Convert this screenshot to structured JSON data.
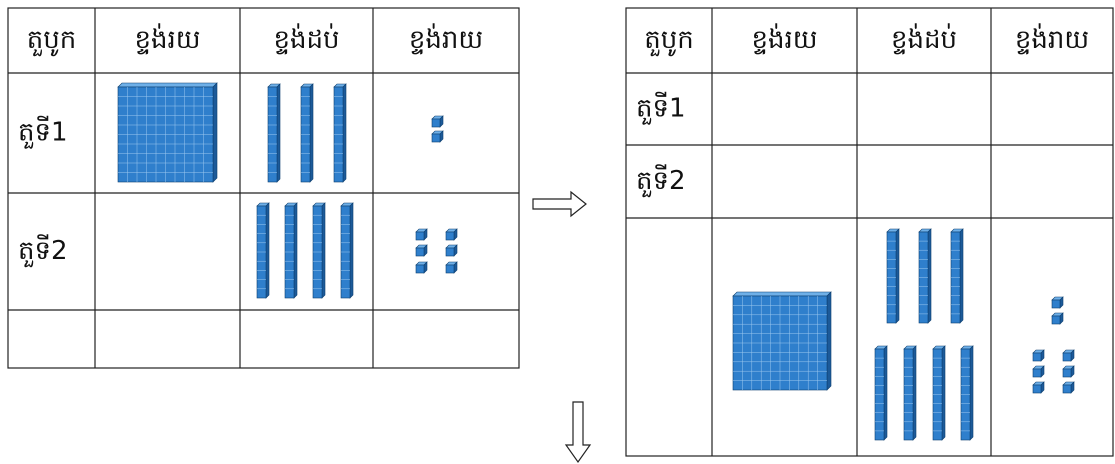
{
  "left_table": {
    "header": [
      "តួបូក",
      "ខ្ទង់រយ",
      "ខ្ទង់ដប់",
      "ខ្ទង់រាយ"
    ],
    "rows": [
      "តួទី1",
      "តួទី2"
    ]
  },
  "right_table": {
    "header": [
      "តួបូក",
      "ខ្ទង់រយ",
      "ខ្ទង់ដប់",
      "ខ្ទង់រាយ"
    ],
    "rows": [
      "តួទី1",
      "តួទី2"
    ]
  }
}
